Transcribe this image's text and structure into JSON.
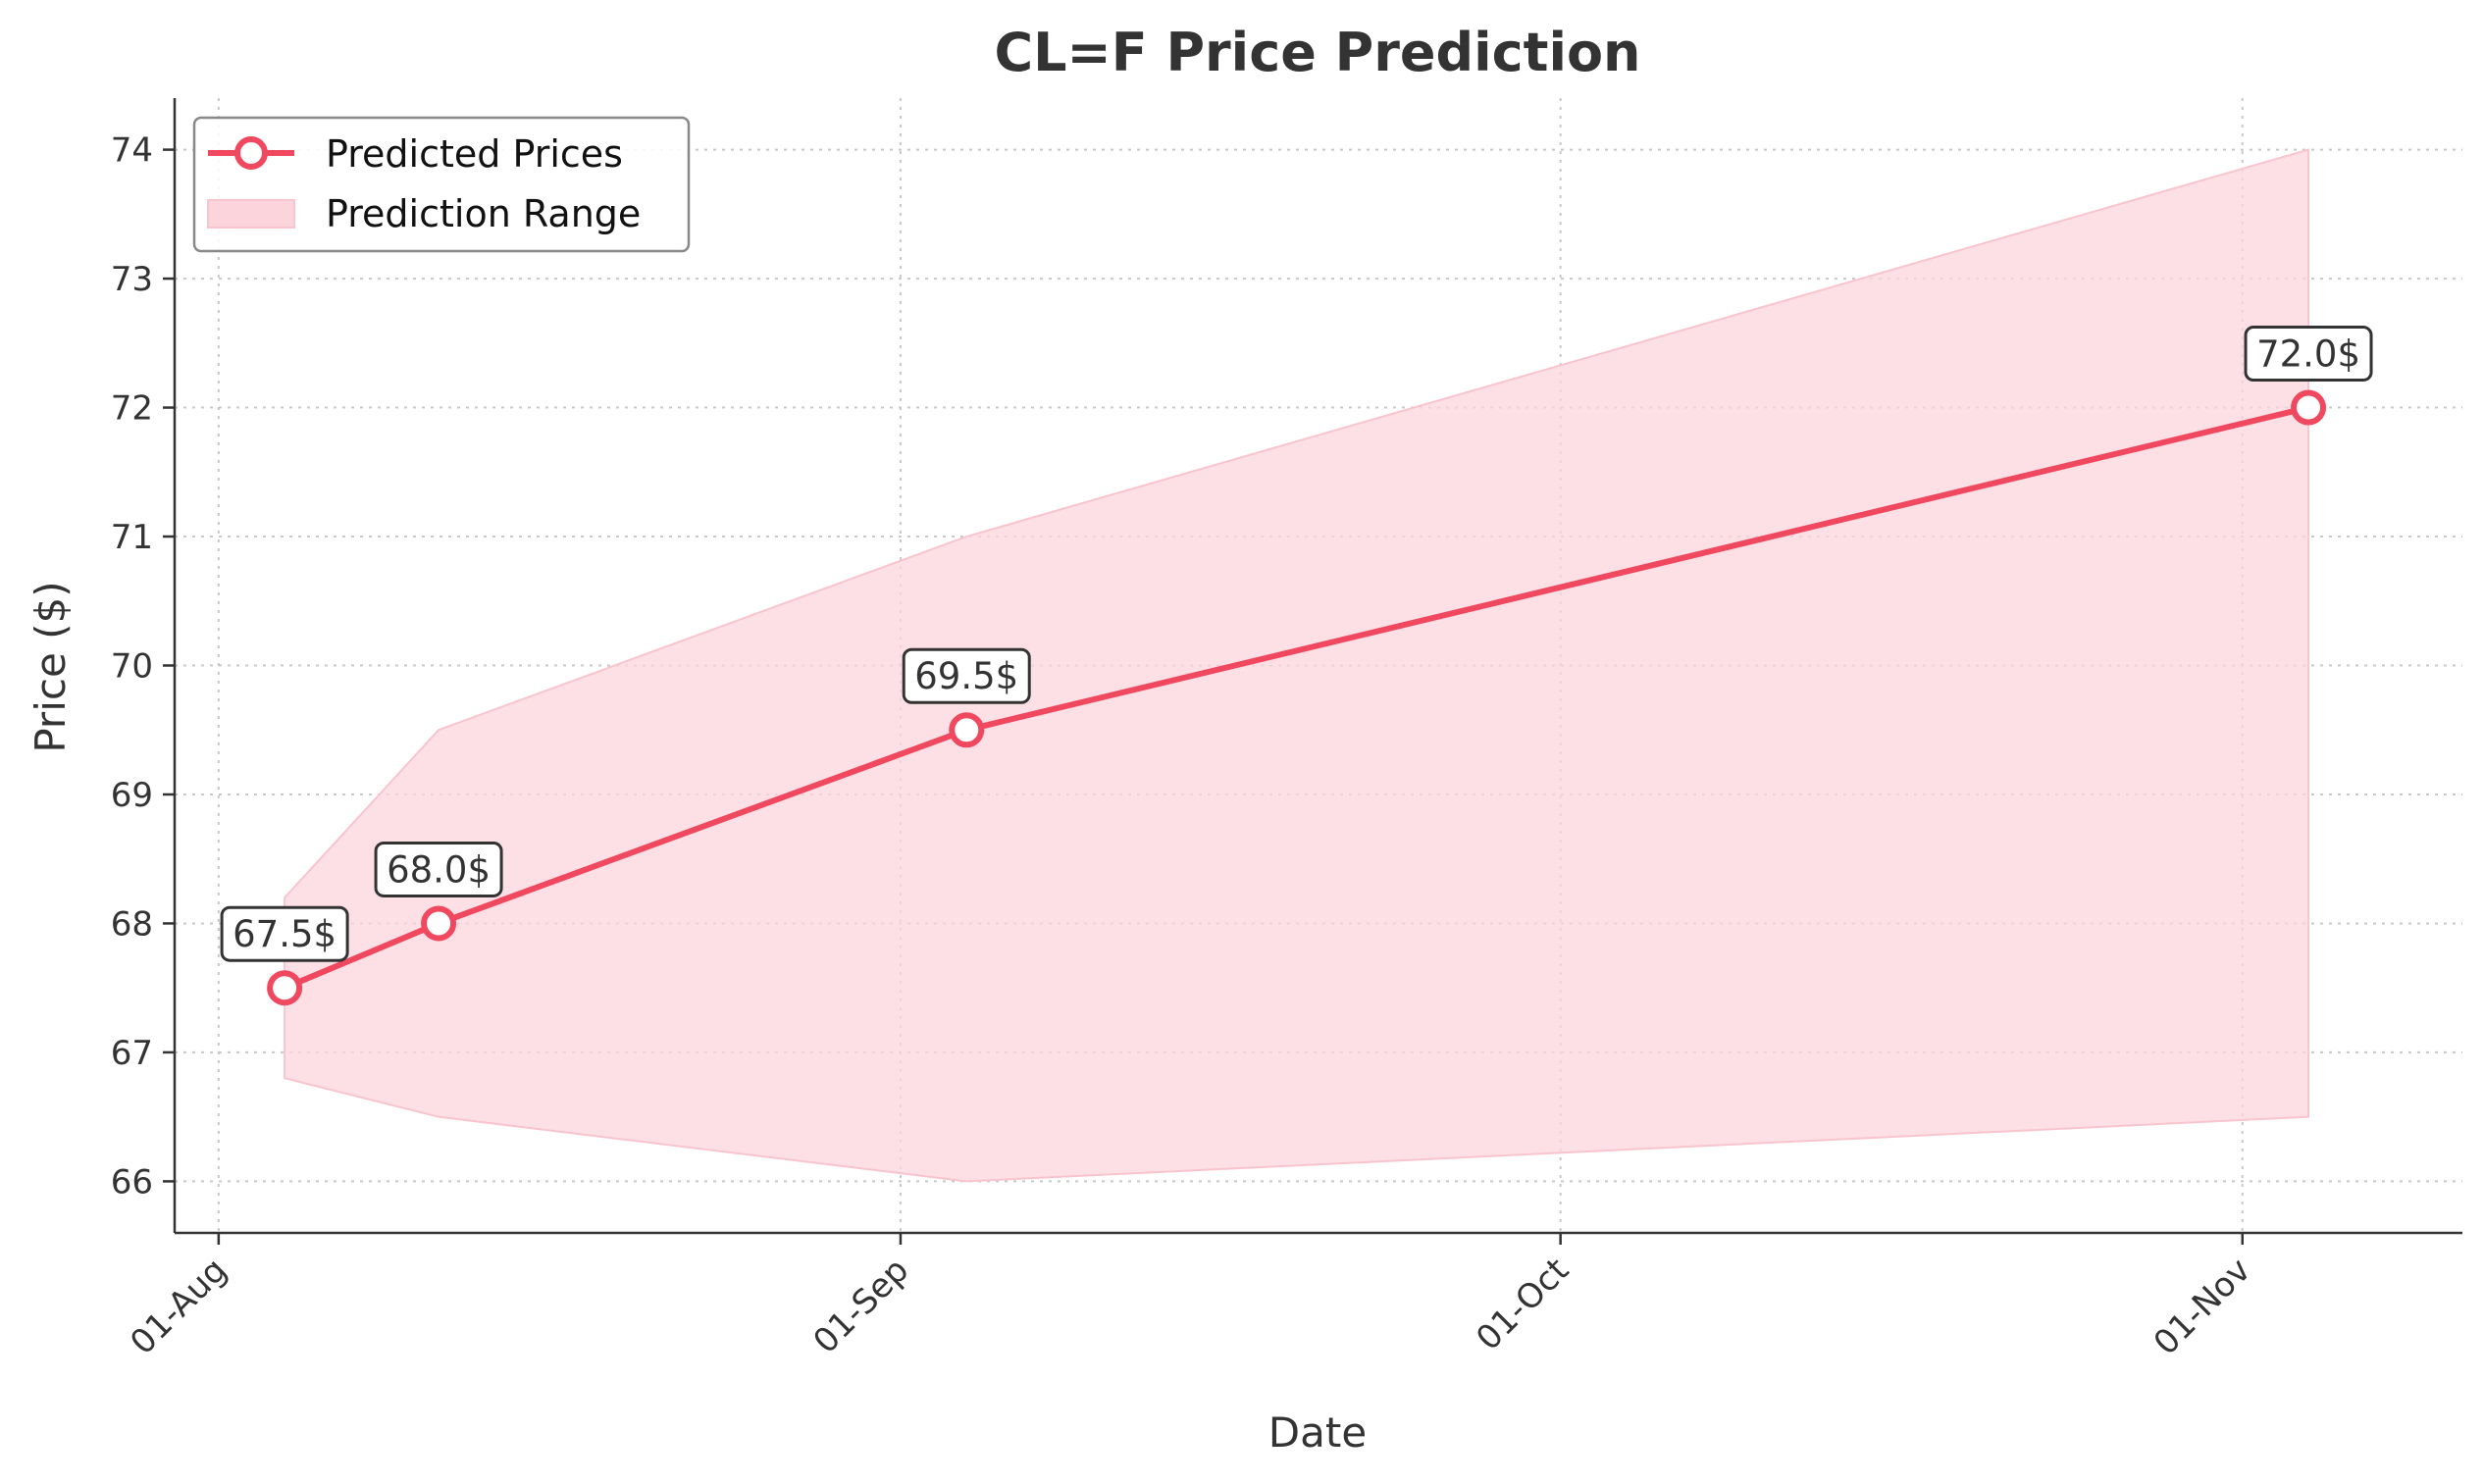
{
  "chart_data": {
    "type": "line",
    "title": "CL=F Price Prediction",
    "xlabel": "Date",
    "ylabel": "Price ($)",
    "x": [
      "2025-08-04",
      "2025-08-11",
      "2025-09-04",
      "2025-11-04"
    ],
    "series": [
      {
        "name": "Predicted Prices",
        "values": [
          67.5,
          68.0,
          69.5,
          72.0
        ],
        "labels": [
          "67.5$",
          "68.0$",
          "69.5$",
          "72.0$"
        ],
        "color": "#f0485f"
      }
    ],
    "range": {
      "name": "Prediction Range",
      "low": [
        66.8,
        66.5,
        66.0,
        66.5
      ],
      "high": [
        68.2,
        69.5,
        71.0,
        74.0
      ],
      "color": "#fcd5dc"
    },
    "x_ticks": [
      {
        "date": "2025-08-01",
        "label": "01-Aug"
      },
      {
        "date": "2025-09-01",
        "label": "01-Sep"
      },
      {
        "date": "2025-10-01",
        "label": "01-Oct"
      },
      {
        "date": "2025-11-01",
        "label": "01-Nov"
      }
    ],
    "y_ticks": [
      66,
      67,
      68,
      69,
      70,
      71,
      72,
      73,
      74
    ],
    "ylim": [
      65.6,
      74.4
    ],
    "xlim": [
      "2025-07-30",
      "2025-11-11"
    ],
    "grid": true,
    "legend_position": "top-left"
  }
}
